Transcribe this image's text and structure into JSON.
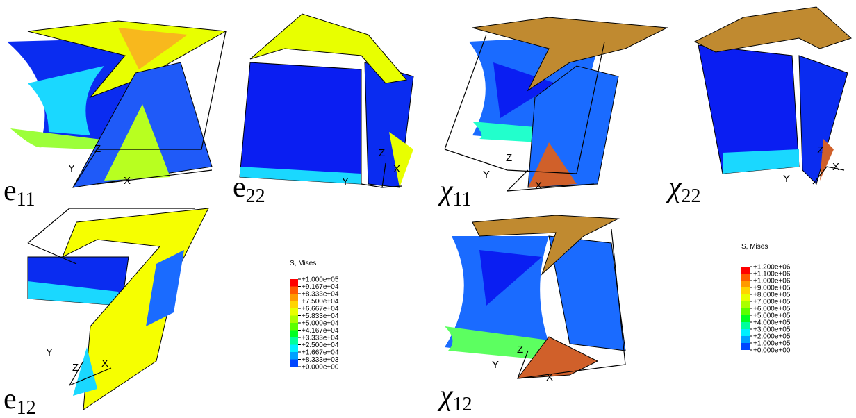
{
  "panels": [
    {
      "symbol": "e",
      "subscript": "11",
      "axes": [
        "Y",
        "Z",
        "X"
      ]
    },
    {
      "symbol": "e",
      "subscript": "22",
      "axes": [
        "Y",
        "Z",
        "X"
      ]
    },
    {
      "symbol": "χ",
      "subscript": "11",
      "axes": [
        "Y",
        "Z",
        "X"
      ]
    },
    {
      "symbol": "χ",
      "subscript": "22",
      "axes": [
        "Y",
        "Z",
        "X"
      ]
    },
    {
      "symbol": "e",
      "subscript": "12",
      "axes": [
        "Y",
        "Z",
        "X"
      ]
    },
    {
      "symbol": "χ",
      "subscript": "12",
      "axes": [
        "Y",
        "Z",
        "X"
      ]
    }
  ],
  "legends": [
    {
      "title": "S, Mises",
      "entries": [
        "+1.000e+05",
        "+9.167e+04",
        "+8.333e+04",
        "+7.500e+04",
        "+6.667e+04",
        "+5.833e+04",
        "+5.000e+04",
        "+4.167e+04",
        "+3.333e+04",
        "+2.500e+04",
        "+1.667e+04",
        "+8.333e+03",
        "+0.000e+00"
      ]
    },
    {
      "title": "S, Mises",
      "entries": [
        "+1.200e+06",
        "+1.100e+06",
        "+1.000e+06",
        "+9.000e+05",
        "+8.000e+05",
        "+7.000e+05",
        "+6.000e+05",
        "+5.000e+05",
        "+4.000e+05",
        "+3.000e+05",
        "+2.000e+05",
        "+1.000e+05",
        "+0.000e+00"
      ]
    }
  ],
  "colors": [
    "#ff0000",
    "#ff5a00",
    "#ff9a00",
    "#ffd400",
    "#e8ff00",
    "#aaff00",
    "#5cff00",
    "#00ff22",
    "#00ff9c",
    "#00f0ff",
    "#00a0ff",
    "#0046ff"
  ]
}
